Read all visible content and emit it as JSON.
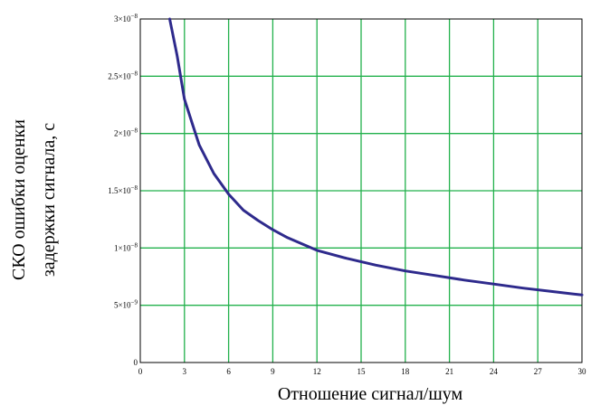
{
  "chart_data": {
    "type": "line",
    "xlabel": "Отношение сигнал/шум",
    "ylabel": [
      "СКО ошибки оценки",
      "задержки сигнала, с"
    ],
    "xlim": [
      0,
      30
    ],
    "ylim": [
      0,
      3e-08
    ],
    "grid": true,
    "x_ticks": [
      {
        "value": 0,
        "label": "0"
      },
      {
        "value": 3,
        "label": "3"
      },
      {
        "value": 6,
        "label": "6"
      },
      {
        "value": 9,
        "label": "9"
      },
      {
        "value": 12,
        "label": "12"
      },
      {
        "value": 15,
        "label": "15"
      },
      {
        "value": 18,
        "label": "18"
      },
      {
        "value": 21,
        "label": "21"
      },
      {
        "value": 24,
        "label": "24"
      },
      {
        "value": 27,
        "label": "27"
      },
      {
        "value": 30,
        "label": "30"
      }
    ],
    "y_ticks": [
      {
        "value": 0,
        "mantissa": "0",
        "exponent": ""
      },
      {
        "value": 5e-09,
        "mantissa": "5×10",
        "exponent": "−9"
      },
      {
        "value": 1e-08,
        "mantissa": "1×10",
        "exponent": "−8"
      },
      {
        "value": 1.5e-08,
        "mantissa": "1.5×10",
        "exponent": "−8"
      },
      {
        "value": 2e-08,
        "mantissa": "2×10",
        "exponent": "−8"
      },
      {
        "value": 2.5e-08,
        "mantissa": "2.5×10",
        "exponent": "−8"
      },
      {
        "value": 3e-08,
        "mantissa": "3×10",
        "exponent": "−8"
      }
    ],
    "series": [
      {
        "color": "#2e2a8c",
        "x": [
          2,
          2.5,
          3,
          3.5,
          4,
          5,
          6,
          7,
          8,
          9,
          10,
          12,
          14,
          16,
          18,
          20,
          22,
          24,
          26,
          28,
          30
        ],
        "y": [
          3e-08,
          2.68e-08,
          2.3e-08,
          2.1e-08,
          1.9e-08,
          1.65e-08,
          1.47e-08,
          1.33e-08,
          1.24e-08,
          1.16e-08,
          1.09e-08,
          9.8e-09,
          9.1e-09,
          8.5e-09,
          8e-09,
          7.6e-09,
          7.2e-09,
          6.85e-09,
          6.5e-09,
          6.2e-09,
          5.9e-09
        ]
      }
    ]
  }
}
